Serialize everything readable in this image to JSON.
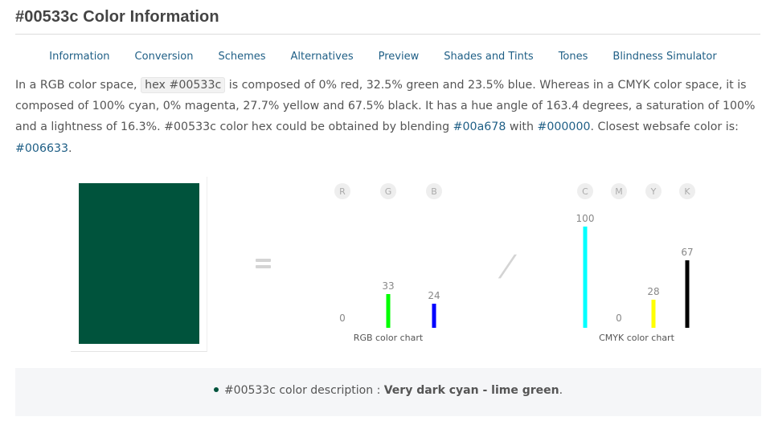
{
  "page": {
    "title": "#00533c Color Information"
  },
  "nav": {
    "items": [
      "Information",
      "Conversion",
      "Schemes",
      "Alternatives",
      "Preview",
      "Shades and Tints",
      "Tones",
      "Blindness Simulator"
    ]
  },
  "intro": {
    "part1": "In a RGB color space, ",
    "code": "hex #00533c",
    "part2": " is composed of 0% red, 32.5% green and 23.5% blue. Whereas in a CMYK color space, it is composed of 100% cyan, 0% magenta, 27.7% yellow and 67.5% black. It has a hue angle of 163.4 degrees, a saturation of 100% and a lightness of 16.3%. #00533c color hex could be obtained by blending ",
    "link1": "#00a678",
    "part3": " with ",
    "link2": "#000000",
    "part4": ". Closest websafe color is: ",
    "link3": "#006633",
    "part5": "."
  },
  "swatch": {
    "color": "#00533c"
  },
  "colors": {
    "red": "#ff0000",
    "green": "#00ff00",
    "blue": "#0000ff",
    "cyan": "#00ffff",
    "magenta": "#ff00ff",
    "yellow": "#ffff00",
    "black": "#000000"
  },
  "chart_data": [
    {
      "type": "bar",
      "title": "RGB color chart",
      "categories": [
        "R",
        "G",
        "B"
      ],
      "values": [
        0,
        33,
        24
      ],
      "ylim": [
        0,
        100
      ]
    },
    {
      "type": "bar",
      "title": "CMYK color chart",
      "categories": [
        "C",
        "M",
        "Y",
        "K"
      ],
      "values": [
        100,
        0,
        28,
        67
      ],
      "ylim": [
        0,
        100
      ]
    }
  ],
  "description": {
    "prefix": "#00533c color description : ",
    "value": "Very dark cyan - lime green",
    "suffix": "."
  }
}
